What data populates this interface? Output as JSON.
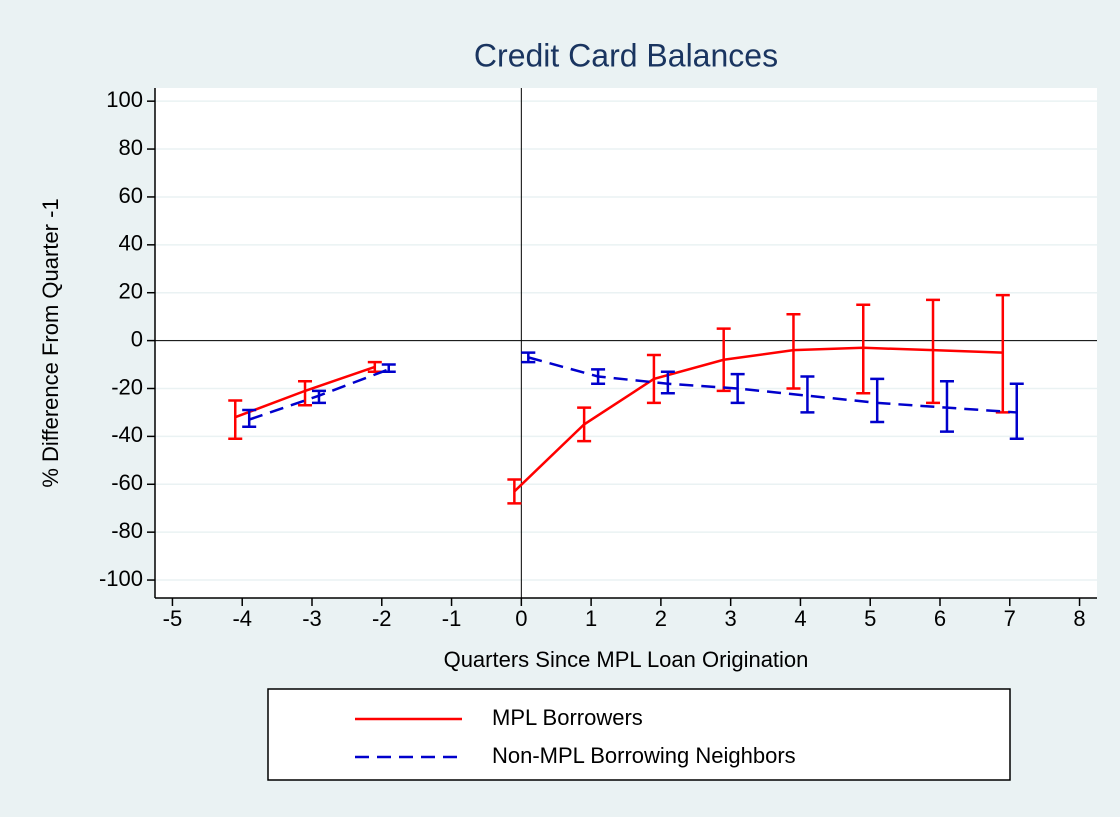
{
  "chart_data": {
    "type": "line",
    "title": "Credit Card Balances",
    "xlabel": "Quarters Since MPL Loan Origination",
    "ylabel": "% Difference From Quarter -1",
    "xlim": [
      -5.25,
      8.25
    ],
    "xticks": [
      -5,
      -4,
      -3,
      -2,
      -1,
      0,
      1,
      2,
      3,
      4,
      5,
      6,
      7,
      8
    ],
    "ylim": [
      -107.5,
      105.5
    ],
    "yticks": [
      -100,
      -80,
      -60,
      -40,
      -20,
      0,
      20,
      40,
      60,
      80,
      100
    ],
    "grid": true,
    "series": [
      {
        "name": "MPL Borrowers",
        "color": "#ff0000",
        "dashed": false,
        "x": [
          -4.1,
          -3.1,
          -2.1,
          -1.1,
          -0.1,
          0.9,
          1.9,
          2.9,
          3.9,
          4.9,
          5.9,
          6.9
        ],
        "values": [
          -32,
          -21,
          -11,
          null,
          -63,
          -35,
          -16,
          -8,
          -4,
          -3,
          -4,
          -5
        ],
        "lower": [
          -41,
          -27,
          -13,
          null,
          -68,
          -42,
          -26,
          -21,
          -20,
          -22,
          -26,
          -30
        ],
        "upper": [
          -25,
          -17,
          -9,
          null,
          -58,
          -28,
          -6,
          5,
          11,
          15,
          17,
          19
        ]
      },
      {
        "name": "Non-MPL Borrowing Neighbors",
        "color": "#0000cc",
        "dashed": true,
        "x": [
          -3.9,
          -2.9,
          -1.9,
          -0.9,
          0.1,
          1.1,
          2.1,
          3.1,
          4.1,
          5.1,
          6.1,
          7.1
        ],
        "values": [
          -33,
          -23,
          -12,
          null,
          -7,
          -15,
          -18,
          -20,
          -23,
          -26,
          -28,
          -30
        ],
        "lower": [
          -36,
          -26,
          -13,
          null,
          -9,
          -18,
          -22,
          -26,
          -30,
          -34,
          -38,
          -41
        ],
        "upper": [
          -29,
          -21,
          -10,
          null,
          -5,
          -12,
          -13,
          -14,
          -15,
          -16,
          -17,
          -18
        ]
      }
    ]
  }
}
